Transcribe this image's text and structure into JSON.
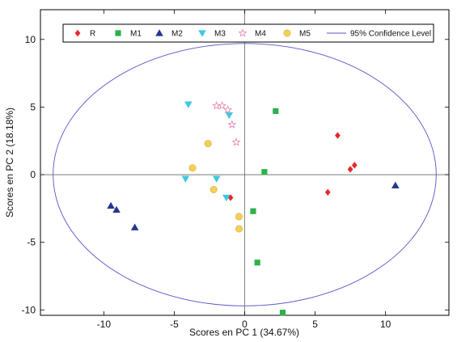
{
  "chart_data": {
    "type": "scatter",
    "xlabel": "Scores en PC 1 (34.67%)",
    "ylabel": "Scores en PC 2 (18.18%)",
    "xlim": [
      -14.5,
      14.5
    ],
    "ylim": [
      -10.4,
      12.2
    ],
    "xticks": [
      -10,
      -5,
      0,
      5,
      10
    ],
    "xtick_labels": [
      "-10",
      "-5",
      "0",
      "5",
      "10"
    ],
    "yticks": [
      -10,
      -5,
      0,
      5,
      10
    ],
    "ytick_labels": [
      "-10",
      "-5",
      "0",
      "5",
      "10"
    ],
    "grid": false,
    "legend_position": "top",
    "series": [
      {
        "name": "R",
        "marker": "diamond",
        "color": "#e8262b",
        "points": [
          [
            6.6,
            2.9
          ],
          [
            7.5,
            0.4
          ],
          [
            7.8,
            0.7
          ],
          [
            5.9,
            -1.3
          ],
          [
            -1.0,
            -1.7
          ]
        ]
      },
      {
        "name": "M1",
        "marker": "square",
        "color": "#2bb24c",
        "points": [
          [
            2.2,
            4.7
          ],
          [
            1.4,
            0.2
          ],
          [
            0.6,
            -2.7
          ],
          [
            0.9,
            -6.5
          ],
          [
            2.7,
            -10.2
          ]
        ]
      },
      {
        "name": "M2",
        "marker": "triangle-up",
        "color": "#26378f",
        "points": [
          [
            -9.5,
            -2.3
          ],
          [
            -9.1,
            -2.6
          ],
          [
            -7.8,
            -3.9
          ],
          [
            10.7,
            -0.8
          ]
        ]
      },
      {
        "name": "M3",
        "marker": "triangle-down",
        "color": "#3fc8e0",
        "points": [
          [
            -4.0,
            5.2
          ],
          [
            -1.1,
            4.4
          ],
          [
            -4.2,
            -0.3
          ],
          [
            -2.0,
            -0.3
          ],
          [
            -1.3,
            -1.7
          ]
        ]
      },
      {
        "name": "M4",
        "marker": "star",
        "color": "#e88ab4",
        "points": [
          [
            -2.0,
            5.1
          ],
          [
            -1.6,
            5.1
          ],
          [
            -1.2,
            4.8
          ],
          [
            -0.9,
            3.7
          ],
          [
            -0.6,
            2.4
          ]
        ]
      },
      {
        "name": "M5",
        "marker": "circle",
        "color": "#f5cf5a",
        "points": [
          [
            -2.6,
            2.3
          ],
          [
            -3.7,
            0.5
          ],
          [
            -2.2,
            -1.1
          ],
          [
            -0.4,
            -3.1
          ],
          [
            -0.4,
            -4.0
          ]
        ]
      }
    ],
    "confidence_ellipse": {
      "name": "95% Confidence Level",
      "color": "#5555c8",
      "center": [
        0,
        0
      ],
      "semi_axis_x": 13.6,
      "semi_axis_y": 9.7
    }
  }
}
